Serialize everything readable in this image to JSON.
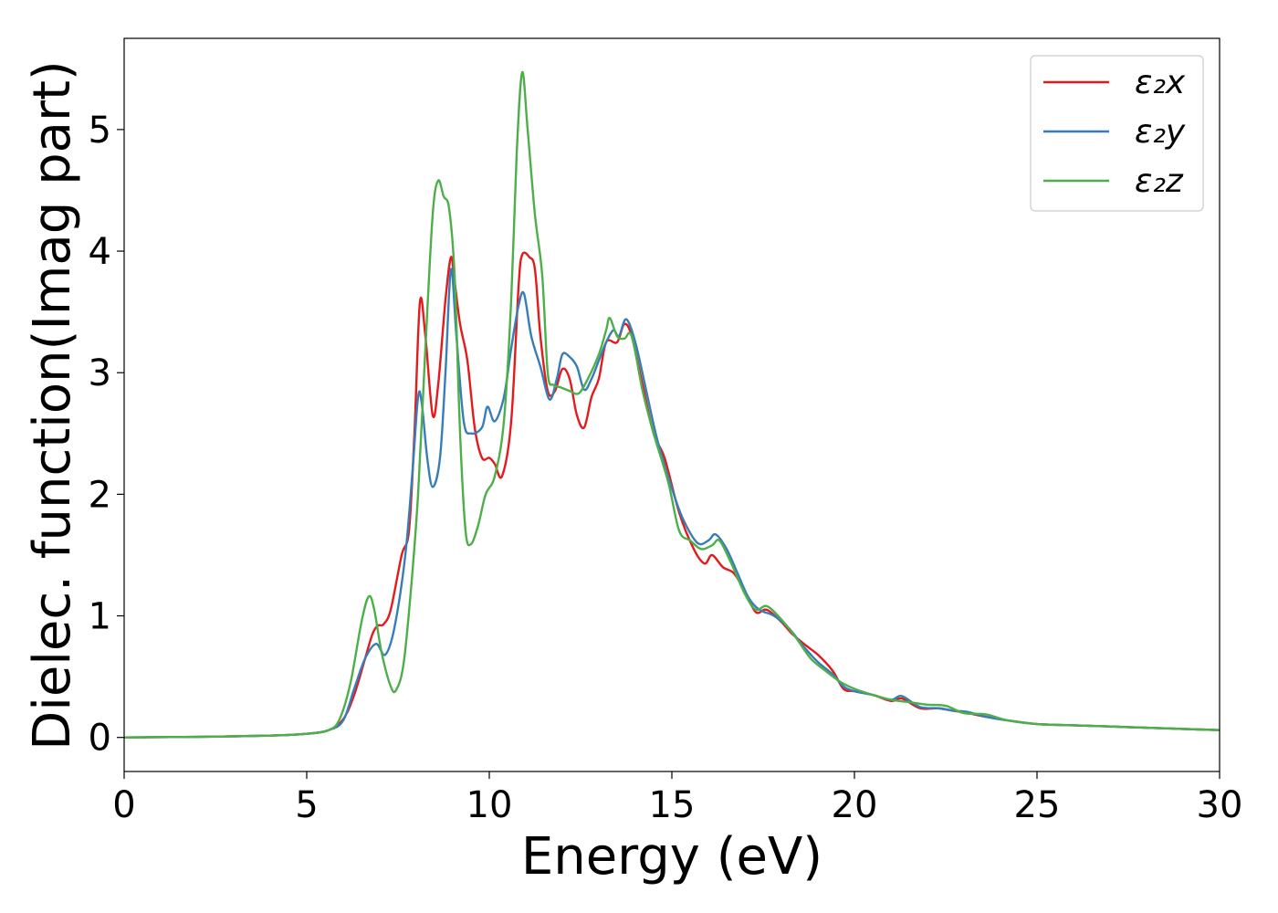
{
  "chart_data": {
    "type": "line",
    "title": "",
    "xlabel": "Energy (eV)",
    "ylabel": "Dielec. function(Imag part)",
    "xlim": [
      0,
      30
    ],
    "ylim": [
      -0.28,
      5.75
    ],
    "xticks": [
      0,
      5,
      10,
      15,
      20,
      25,
      30
    ],
    "yticks": [
      0,
      1,
      2,
      3,
      4,
      5
    ],
    "grid": false,
    "legend_position": "top-right",
    "series": [
      {
        "name": "ε₂x",
        "color": "#e41a1c",
        "points": [
          [
            0,
            0.0
          ],
          [
            2,
            0.005
          ],
          [
            4,
            0.015
          ],
          [
            5,
            0.03
          ],
          [
            5.6,
            0.06
          ],
          [
            6.0,
            0.15
          ],
          [
            6.3,
            0.35
          ],
          [
            6.6,
            0.65
          ],
          [
            6.8,
            0.85
          ],
          [
            6.95,
            0.92
          ],
          [
            7.1,
            0.93
          ],
          [
            7.3,
            1.05
          ],
          [
            7.6,
            1.5
          ],
          [
            7.8,
            1.7
          ],
          [
            7.95,
            2.5
          ],
          [
            8.1,
            3.58
          ],
          [
            8.25,
            3.3
          ],
          [
            8.45,
            2.65
          ],
          [
            8.6,
            2.9
          ],
          [
            8.8,
            3.6
          ],
          [
            8.95,
            3.95
          ],
          [
            9.05,
            3.75
          ],
          [
            9.2,
            3.4
          ],
          [
            9.4,
            3.1
          ],
          [
            9.6,
            2.55
          ],
          [
            9.8,
            2.3
          ],
          [
            10.0,
            2.3
          ],
          [
            10.15,
            2.25
          ],
          [
            10.35,
            2.15
          ],
          [
            10.6,
            2.6
          ],
          [
            10.8,
            3.7
          ],
          [
            10.9,
            3.97
          ],
          [
            11.1,
            3.95
          ],
          [
            11.25,
            3.85
          ],
          [
            11.4,
            3.3
          ],
          [
            11.6,
            2.85
          ],
          [
            11.8,
            2.85
          ],
          [
            12.0,
            3.03
          ],
          [
            12.2,
            2.95
          ],
          [
            12.4,
            2.65
          ],
          [
            12.6,
            2.55
          ],
          [
            12.8,
            2.8
          ],
          [
            13.0,
            2.95
          ],
          [
            13.2,
            3.25
          ],
          [
            13.5,
            3.25
          ],
          [
            13.7,
            3.4
          ],
          [
            13.9,
            3.3
          ],
          [
            14.2,
            2.9
          ],
          [
            14.5,
            2.5
          ],
          [
            14.8,
            2.3
          ],
          [
            15.2,
            1.85
          ],
          [
            15.6,
            1.55
          ],
          [
            15.9,
            1.43
          ],
          [
            16.1,
            1.5
          ],
          [
            16.4,
            1.4
          ],
          [
            16.7,
            1.35
          ],
          [
            17.0,
            1.2
          ],
          [
            17.3,
            1.03
          ],
          [
            17.6,
            1.05
          ],
          [
            18.0,
            0.95
          ],
          [
            18.3,
            0.85
          ],
          [
            18.7,
            0.75
          ],
          [
            19.0,
            0.68
          ],
          [
            19.4,
            0.55
          ],
          [
            19.7,
            0.4
          ],
          [
            20.0,
            0.38
          ],
          [
            20.5,
            0.35
          ],
          [
            21.0,
            0.3
          ],
          [
            21.3,
            0.32
          ],
          [
            21.8,
            0.24
          ],
          [
            22.3,
            0.24
          ],
          [
            22.7,
            0.22
          ],
          [
            23.1,
            0.2
          ],
          [
            23.6,
            0.17
          ],
          [
            24.2,
            0.14
          ],
          [
            25.0,
            0.11
          ],
          [
            26.0,
            0.1
          ],
          [
            27.0,
            0.09
          ],
          [
            28.0,
            0.08
          ],
          [
            29.0,
            0.07
          ],
          [
            30.0,
            0.06
          ]
        ]
      },
      {
        "name": "ε₂y",
        "color": "#377eb8",
        "points": [
          [
            0,
            0.0
          ],
          [
            2,
            0.005
          ],
          [
            4,
            0.015
          ],
          [
            5,
            0.03
          ],
          [
            5.6,
            0.06
          ],
          [
            6.0,
            0.14
          ],
          [
            6.3,
            0.4
          ],
          [
            6.6,
            0.65
          ],
          [
            6.9,
            0.77
          ],
          [
            7.15,
            0.68
          ],
          [
            7.4,
            0.9
          ],
          [
            7.7,
            1.5
          ],
          [
            7.9,
            2.2
          ],
          [
            8.05,
            2.8
          ],
          [
            8.15,
            2.75
          ],
          [
            8.3,
            2.3
          ],
          [
            8.45,
            2.06
          ],
          [
            8.65,
            2.3
          ],
          [
            8.8,
            3.0
          ],
          [
            8.95,
            3.85
          ],
          [
            9.1,
            3.3
          ],
          [
            9.3,
            2.6
          ],
          [
            9.5,
            2.5
          ],
          [
            9.8,
            2.55
          ],
          [
            9.95,
            2.72
          ],
          [
            10.15,
            2.6
          ],
          [
            10.4,
            2.8
          ],
          [
            10.6,
            3.2
          ],
          [
            10.8,
            3.55
          ],
          [
            10.95,
            3.65
          ],
          [
            11.15,
            3.3
          ],
          [
            11.4,
            3.05
          ],
          [
            11.65,
            2.78
          ],
          [
            11.85,
            2.95
          ],
          [
            12.0,
            3.15
          ],
          [
            12.2,
            3.13
          ],
          [
            12.4,
            3.05
          ],
          [
            12.6,
            2.86
          ],
          [
            12.8,
            2.95
          ],
          [
            13.0,
            3.1
          ],
          [
            13.2,
            3.25
          ],
          [
            13.4,
            3.35
          ],
          [
            13.55,
            3.3
          ],
          [
            13.75,
            3.44
          ],
          [
            14.0,
            3.25
          ],
          [
            14.3,
            2.85
          ],
          [
            14.6,
            2.45
          ],
          [
            15.0,
            2.05
          ],
          [
            15.3,
            1.8
          ],
          [
            15.7,
            1.6
          ],
          [
            16.0,
            1.62
          ],
          [
            16.2,
            1.67
          ],
          [
            16.5,
            1.55
          ],
          [
            16.8,
            1.35
          ],
          [
            17.1,
            1.15
          ],
          [
            17.4,
            1.05
          ],
          [
            17.8,
            1.0
          ],
          [
            18.2,
            0.9
          ],
          [
            18.6,
            0.75
          ],
          [
            19.0,
            0.62
          ],
          [
            19.4,
            0.52
          ],
          [
            19.7,
            0.42
          ],
          [
            20.0,
            0.38
          ],
          [
            20.5,
            0.35
          ],
          [
            21.0,
            0.31
          ],
          [
            21.3,
            0.34
          ],
          [
            21.8,
            0.25
          ],
          [
            22.3,
            0.24
          ],
          [
            22.7,
            0.22
          ],
          [
            23.1,
            0.21
          ],
          [
            23.6,
            0.17
          ],
          [
            24.2,
            0.14
          ],
          [
            25.0,
            0.11
          ],
          [
            26.0,
            0.1
          ],
          [
            27.0,
            0.09
          ],
          [
            28.0,
            0.08
          ],
          [
            29.0,
            0.07
          ],
          [
            30.0,
            0.06
          ]
        ]
      },
      {
        "name": "ε₂z",
        "color": "#4daf4a",
        "points": [
          [
            0,
            0.0
          ],
          [
            2,
            0.005
          ],
          [
            4,
            0.015
          ],
          [
            5,
            0.03
          ],
          [
            5.6,
            0.06
          ],
          [
            5.9,
            0.15
          ],
          [
            6.2,
            0.45
          ],
          [
            6.5,
            0.95
          ],
          [
            6.7,
            1.16
          ],
          [
            6.85,
            1.05
          ],
          [
            7.05,
            0.7
          ],
          [
            7.3,
            0.42
          ],
          [
            7.45,
            0.39
          ],
          [
            7.65,
            0.6
          ],
          [
            7.85,
            1.2
          ],
          [
            8.05,
            2.0
          ],
          [
            8.25,
            3.2
          ],
          [
            8.45,
            4.3
          ],
          [
            8.6,
            4.58
          ],
          [
            8.75,
            4.45
          ],
          [
            8.9,
            4.35
          ],
          [
            9.05,
            3.8
          ],
          [
            9.2,
            2.5
          ],
          [
            9.35,
            1.7
          ],
          [
            9.5,
            1.59
          ],
          [
            9.7,
            1.75
          ],
          [
            9.9,
            2.0
          ],
          [
            10.15,
            2.15
          ],
          [
            10.4,
            2.6
          ],
          [
            10.6,
            3.6
          ],
          [
            10.75,
            4.8
          ],
          [
            10.9,
            5.47
          ],
          [
            11.05,
            5.0
          ],
          [
            11.25,
            4.3
          ],
          [
            11.45,
            3.8
          ],
          [
            11.6,
            3.0
          ],
          [
            11.75,
            2.9
          ],
          [
            11.95,
            2.88
          ],
          [
            12.2,
            2.85
          ],
          [
            12.45,
            2.83
          ],
          [
            12.7,
            2.95
          ],
          [
            13.0,
            3.15
          ],
          [
            13.2,
            3.35
          ],
          [
            13.3,
            3.45
          ],
          [
            13.5,
            3.3
          ],
          [
            13.7,
            3.28
          ],
          [
            13.9,
            3.3
          ],
          [
            14.2,
            2.85
          ],
          [
            14.5,
            2.5
          ],
          [
            14.9,
            2.1
          ],
          [
            15.2,
            1.7
          ],
          [
            15.5,
            1.62
          ],
          [
            15.8,
            1.55
          ],
          [
            16.1,
            1.58
          ],
          [
            16.3,
            1.62
          ],
          [
            16.6,
            1.45
          ],
          [
            17.0,
            1.18
          ],
          [
            17.3,
            1.05
          ],
          [
            17.6,
            1.08
          ],
          [
            18.0,
            0.97
          ],
          [
            18.4,
            0.82
          ],
          [
            18.8,
            0.65
          ],
          [
            19.2,
            0.55
          ],
          [
            19.6,
            0.46
          ],
          [
            20.0,
            0.4
          ],
          [
            20.5,
            0.35
          ],
          [
            21.0,
            0.31
          ],
          [
            21.5,
            0.29
          ],
          [
            22.0,
            0.27
          ],
          [
            22.5,
            0.26
          ],
          [
            23.0,
            0.2
          ],
          [
            23.6,
            0.19
          ],
          [
            24.2,
            0.14
          ],
          [
            25.0,
            0.11
          ],
          [
            26.0,
            0.1
          ],
          [
            27.0,
            0.09
          ],
          [
            28.0,
            0.08
          ],
          [
            29.0,
            0.07
          ],
          [
            30.0,
            0.06
          ]
        ]
      }
    ]
  }
}
